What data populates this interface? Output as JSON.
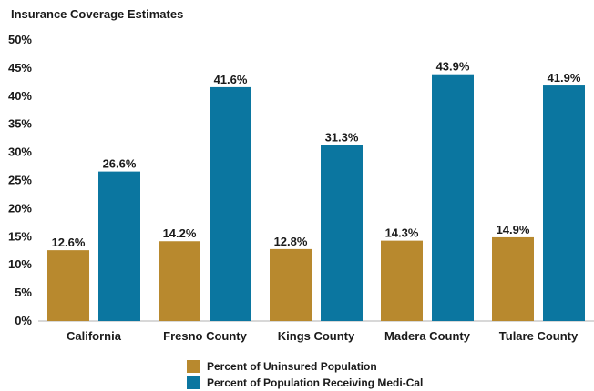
{
  "chart_data": {
    "type": "bar",
    "title": "Insurance Coverage Estimates",
    "xlabel": "",
    "ylabel": "",
    "ylim": [
      0,
      50
    ],
    "yticks": [
      "0%",
      "5%",
      "10%",
      "15%",
      "20%",
      "25%",
      "30%",
      "35%",
      "40%",
      "45%",
      "50%"
    ],
    "ytick_values": [
      0,
      5,
      10,
      15,
      20,
      25,
      30,
      35,
      40,
      45,
      50
    ],
    "categories": [
      "California",
      "Fresno County",
      "Kings County",
      "Madera County",
      "Tulare County"
    ],
    "grid": false,
    "legend_position": "bottom",
    "series": [
      {
        "name": "Percent of Uninsured Population",
        "color": "#b8892e",
        "values": [
          12.6,
          14.2,
          12.8,
          14.3,
          14.9
        ],
        "labels": [
          "12.6%",
          "14.2%",
          "12.8%",
          "14.3%",
          "14.9%"
        ]
      },
      {
        "name": "Percent of Population Receiving Medi-Cal",
        "color": "#0b76a0",
        "values": [
          26.6,
          41.6,
          31.3,
          43.9,
          41.9
        ],
        "labels": [
          "26.6%",
          "41.6%",
          "31.3%",
          "43.9%",
          "41.9%"
        ]
      }
    ]
  }
}
